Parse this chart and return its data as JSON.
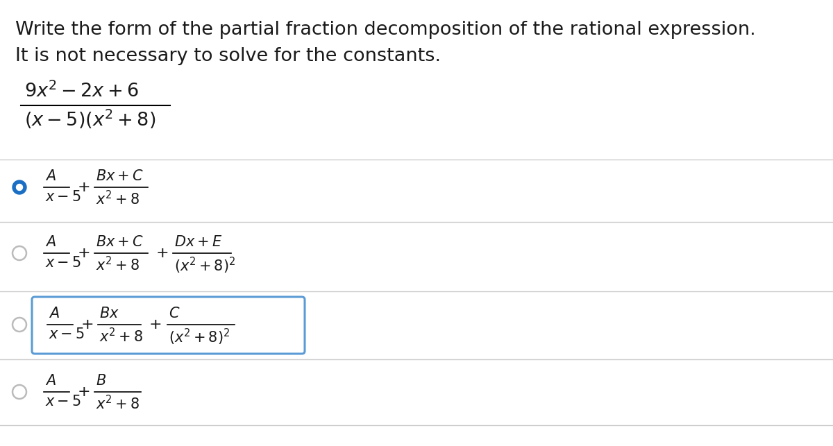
{
  "background_color": "#ffffff",
  "title_line1": "Write the form of the partial fraction decomposition of the rational expression.",
  "title_line2": "It is not necessary to solve for the constants.",
  "title_fontsize": 19.5,
  "title_color": "#1a1a1a",
  "divider_color": "#cccccc",
  "radio_selected_color": "#1a6fc4",
  "radio_unselected_color": "#bbbbbb",
  "box_color": "#5b9bd5",
  "math_fontsize": 15,
  "math_color": "#1a1a1a",
  "fraction_num": "$9x^2-2x+6$",
  "fraction_den": "$(x-5)(x^2+8)$",
  "opt1_parts": [
    "$A$",
    "$x-5$",
    "$Bx+C$",
    "$x^2+8$"
  ],
  "opt2_parts": [
    "$A$",
    "$x-5$",
    "$Bx+C$",
    "$x^2+8$",
    "$Dx+E$",
    "$(x^2+8)^2$"
  ],
  "opt3_parts": [
    "$A$",
    "$x-5$",
    "$Bx$",
    "$x^2+8$",
    "$C$",
    "$(x^2+8)^2$"
  ],
  "opt4_parts": [
    "$A$",
    "$x-5$",
    "$B$",
    "$x^2+8$"
  ]
}
